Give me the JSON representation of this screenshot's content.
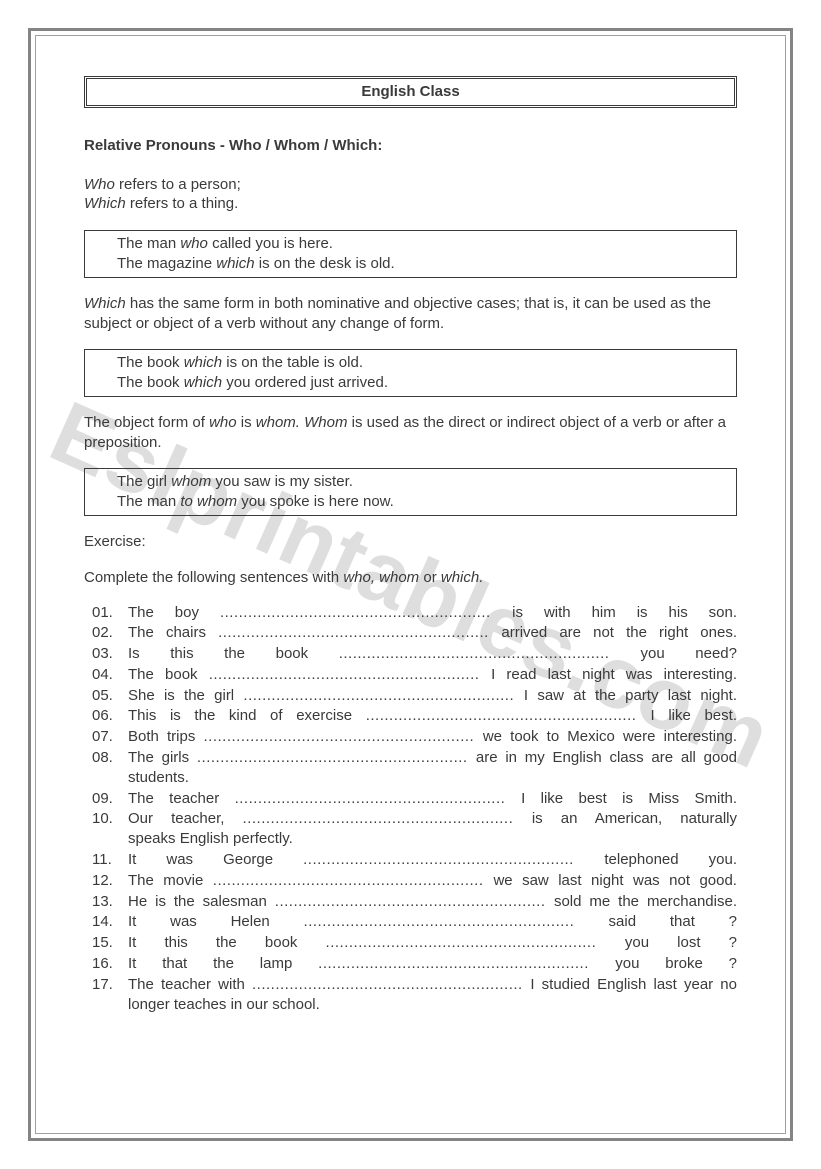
{
  "watermark": "Eslprintables.com",
  "title": "English Class",
  "heading": "Relative Pronouns - Who / Whom / Which:",
  "intro": {
    "line1_a": "Who",
    "line1_b": " refers to a person;",
    "line2_a": "Which",
    "line2_b": " refers to a thing."
  },
  "example1": {
    "l1a": "The man ",
    "l1b": "who",
    "l1c": " called you is here.",
    "l2a": "The magazine ",
    "l2b": "which",
    "l2c": " is on the desk is old."
  },
  "para2_a": "Which",
  "para2_b": " has the same form in both nominative and objective cases; that is, it can be used as the subject or object of a verb without any change of form.",
  "example2": {
    "l1a": "The book ",
    "l1b": "which",
    "l1c": " is on the table is old.",
    "l2a": "The book ",
    "l2b": "which",
    "l2c": " you ordered just arrived."
  },
  "para3_a": "The object form of ",
  "para3_b": "who",
  "para3_c": " is ",
  "para3_d": "whom. Whom",
  "para3_e": " is used as the direct or indirect object of a verb or after a preposition.",
  "example3": {
    "l1a": "The girl ",
    "l1b": "whom",
    "l1c": " you saw is my sister.",
    "l2a": "The man ",
    "l2b": "to whom",
    "l2c": " you spoke is here now."
  },
  "exercise_label": "Exercise:",
  "instructions_a": "Complete the following sentences with ",
  "instructions_b": "who, whom",
  "instructions_c": " or ",
  "instructions_d": "which.",
  "items": [
    {
      "num": "01.",
      "before": "The boy ",
      "after": " is with him is his son."
    },
    {
      "num": "02.",
      "before": "The chairs ",
      "after": " arrived are not the right ones."
    },
    {
      "num": "03.",
      "before": "Is this the book ",
      "after": " you need?"
    },
    {
      "num": "04.",
      "before": "The book ",
      "after": " I read last night was interesting."
    },
    {
      "num": "05.",
      "before": "She is the girl ",
      "after": " I saw at the party last night."
    },
    {
      "num": "06.",
      "before": "This is the kind of exercise ",
      "after": " I like best."
    },
    {
      "num": "07.",
      "before": "Both trips ",
      "after": " we took to Mexico were interesting."
    },
    {
      "num": "08.",
      "before": "The girls ",
      "after": " are in my English class are all good students."
    },
    {
      "num": "09.",
      "before": "The teacher ",
      "after": " I like best is Miss Smith."
    },
    {
      "num": "10.",
      "before": "Our teacher, ",
      "after": " is an American, naturally",
      "cont": "speaks English perfectly."
    },
    {
      "num": "11.",
      "before": "It was George ",
      "after": " telephoned you."
    },
    {
      "num": "12.",
      "before": "The movie ",
      "after": " we saw last night was not good."
    },
    {
      "num": "13.",
      "before": "He is the salesman ",
      "after": " sold me the merchandise."
    },
    {
      "num": "14.",
      "before": "It was Helen ",
      "after": " said that ?"
    },
    {
      "num": "15.",
      "before": "It this the book ",
      "after": " you lost ?"
    },
    {
      "num": "16.",
      "before": "It that the lamp ",
      "after": " you broke ?"
    },
    {
      "num": "17.",
      "before": "The teacher with ",
      "after": " I studied English last year no",
      "cont": "longer teaches in our school."
    }
  ]
}
